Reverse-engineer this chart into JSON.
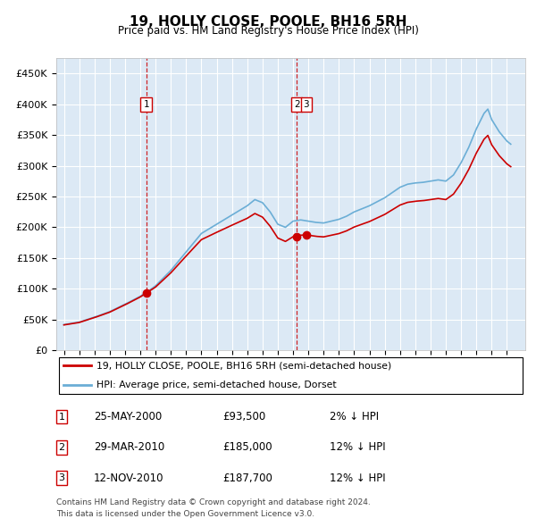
{
  "title": "19, HOLLY CLOSE, POOLE, BH16 5RH",
  "subtitle": "Price paid vs. HM Land Registry's House Price Index (HPI)",
  "hpi_label": "HPI: Average price, semi-detached house, Dorset",
  "property_label": "19, HOLLY CLOSE, POOLE, BH16 5RH (semi-detached house)",
  "footer1": "Contains HM Land Registry data © Crown copyright and database right 2024.",
  "footer2": "This data is licensed under the Open Government Licence v3.0.",
  "sales": [
    {
      "num": 1,
      "date": "25-MAY-2000",
      "price": 93500,
      "pct": "2%",
      "dir": "↓"
    },
    {
      "num": 2,
      "date": "29-MAR-2010",
      "price": 185000,
      "pct": "12%",
      "dir": "↓"
    },
    {
      "num": 3,
      "date": "12-NOV-2010",
      "price": 187700,
      "pct": "12%",
      "dir": "↓"
    }
  ],
  "sale_years": [
    2000.39,
    2010.24,
    2010.87
  ],
  "sale_prices": [
    93500,
    185000,
    187700
  ],
  "vline_x": [
    2000.39,
    2010.24
  ],
  "plot_bg": "#dce9f5",
  "hpi_color": "#6baed6",
  "property_color": "#cc0000",
  "ylim": [
    0,
    475000
  ],
  "xlim_start": 1994.5,
  "xlim_end": 2025.2,
  "yticks": [
    0,
    50000,
    100000,
    150000,
    200000,
    250000,
    300000,
    350000,
    400000,
    450000
  ],
  "xticks": [
    1995,
    1996,
    1997,
    1998,
    1999,
    2000,
    2001,
    2002,
    2003,
    2004,
    2005,
    2006,
    2007,
    2008,
    2009,
    2010,
    2011,
    2012,
    2013,
    2014,
    2015,
    2016,
    2017,
    2018,
    2019,
    2020,
    2021,
    2022,
    2023,
    2024
  ]
}
